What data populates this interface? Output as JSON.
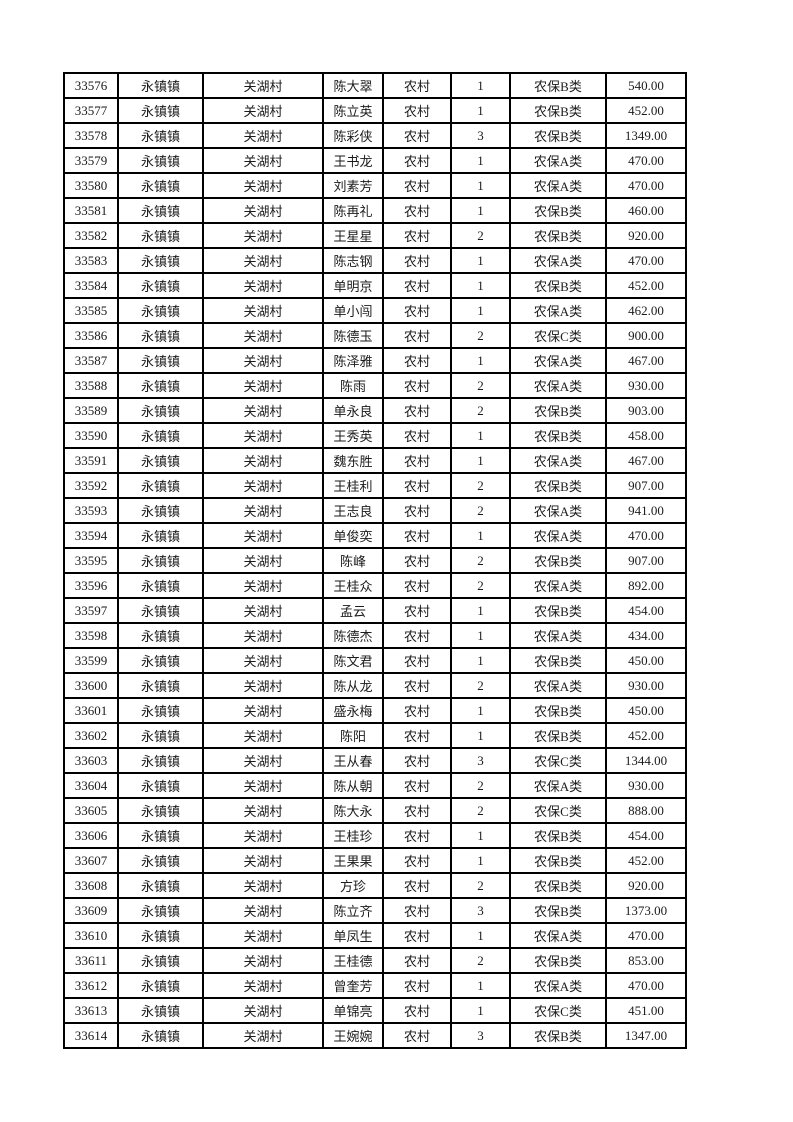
{
  "page": {
    "background_color": "#ffffff",
    "border_color": "#000000",
    "text_color": "#1b1b1b"
  },
  "table": {
    "columns": [
      "record_id",
      "town",
      "village",
      "person_name",
      "residence_type",
      "person_count",
      "insurance_class",
      "amount"
    ],
    "rows": [
      [
        "33576",
        "永镇镇",
        "关湖村",
        "陈大翠",
        "农村",
        "1",
        "农保B类",
        "540.00"
      ],
      [
        "33577",
        "永镇镇",
        "关湖村",
        "陈立英",
        "农村",
        "1",
        "农保B类",
        "452.00"
      ],
      [
        "33578",
        "永镇镇",
        "关湖村",
        "陈彩侠",
        "农村",
        "3",
        "农保B类",
        "1349.00"
      ],
      [
        "33579",
        "永镇镇",
        "关湖村",
        "王书龙",
        "农村",
        "1",
        "农保A类",
        "470.00"
      ],
      [
        "33580",
        "永镇镇",
        "关湖村",
        "刘素芳",
        "农村",
        "1",
        "农保A类",
        "470.00"
      ],
      [
        "33581",
        "永镇镇",
        "关湖村",
        "陈再礼",
        "农村",
        "1",
        "农保B类",
        "460.00"
      ],
      [
        "33582",
        "永镇镇",
        "关湖村",
        "王星星",
        "农村",
        "2",
        "农保B类",
        "920.00"
      ],
      [
        "33583",
        "永镇镇",
        "关湖村",
        "陈志钢",
        "农村",
        "1",
        "农保A类",
        "470.00"
      ],
      [
        "33584",
        "永镇镇",
        "关湖村",
        "单明京",
        "农村",
        "1",
        "农保B类",
        "452.00"
      ],
      [
        "33585",
        "永镇镇",
        "关湖村",
        "单小闯",
        "农村",
        "1",
        "农保A类",
        "462.00"
      ],
      [
        "33586",
        "永镇镇",
        "关湖村",
        "陈德玉",
        "农村",
        "2",
        "农保C类",
        "900.00"
      ],
      [
        "33587",
        "永镇镇",
        "关湖村",
        "陈泽雅",
        "农村",
        "1",
        "农保A类",
        "467.00"
      ],
      [
        "33588",
        "永镇镇",
        "关湖村",
        "陈雨",
        "农村",
        "2",
        "农保A类",
        "930.00"
      ],
      [
        "33589",
        "永镇镇",
        "关湖村",
        "单永良",
        "农村",
        "2",
        "农保B类",
        "903.00"
      ],
      [
        "33590",
        "永镇镇",
        "关湖村",
        "王秀英",
        "农村",
        "1",
        "农保B类",
        "458.00"
      ],
      [
        "33591",
        "永镇镇",
        "关湖村",
        "魏东胜",
        "农村",
        "1",
        "农保A类",
        "467.00"
      ],
      [
        "33592",
        "永镇镇",
        "关湖村",
        "王桂利",
        "农村",
        "2",
        "农保B类",
        "907.00"
      ],
      [
        "33593",
        "永镇镇",
        "关湖村",
        "王志良",
        "农村",
        "2",
        "农保A类",
        "941.00"
      ],
      [
        "33594",
        "永镇镇",
        "关湖村",
        "单俊奕",
        "农村",
        "1",
        "农保A类",
        "470.00"
      ],
      [
        "33595",
        "永镇镇",
        "关湖村",
        "陈峰",
        "农村",
        "2",
        "农保B类",
        "907.00"
      ],
      [
        "33596",
        "永镇镇",
        "关湖村",
        "王桂众",
        "农村",
        "2",
        "农保A类",
        "892.00"
      ],
      [
        "33597",
        "永镇镇",
        "关湖村",
        "孟云",
        "农村",
        "1",
        "农保B类",
        "454.00"
      ],
      [
        "33598",
        "永镇镇",
        "关湖村",
        "陈德杰",
        "农村",
        "1",
        "农保A类",
        "434.00"
      ],
      [
        "33599",
        "永镇镇",
        "关湖村",
        "陈文君",
        "农村",
        "1",
        "农保B类",
        "450.00"
      ],
      [
        "33600",
        "永镇镇",
        "关湖村",
        "陈从龙",
        "农村",
        "2",
        "农保A类",
        "930.00"
      ],
      [
        "33601",
        "永镇镇",
        "关湖村",
        "盛永梅",
        "农村",
        "1",
        "农保B类",
        "450.00"
      ],
      [
        "33602",
        "永镇镇",
        "关湖村",
        "陈阳",
        "农村",
        "1",
        "农保B类",
        "452.00"
      ],
      [
        "33603",
        "永镇镇",
        "关湖村",
        "王从春",
        "农村",
        "3",
        "农保C类",
        "1344.00"
      ],
      [
        "33604",
        "永镇镇",
        "关湖村",
        "陈从朝",
        "农村",
        "2",
        "农保A类",
        "930.00"
      ],
      [
        "33605",
        "永镇镇",
        "关湖村",
        "陈大永",
        "农村",
        "2",
        "农保C类",
        "888.00"
      ],
      [
        "33606",
        "永镇镇",
        "关湖村",
        "王桂珍",
        "农村",
        "1",
        "农保B类",
        "454.00"
      ],
      [
        "33607",
        "永镇镇",
        "关湖村",
        "王果果",
        "农村",
        "1",
        "农保B类",
        "452.00"
      ],
      [
        "33608",
        "永镇镇",
        "关湖村",
        "方珍",
        "农村",
        "2",
        "农保B类",
        "920.00"
      ],
      [
        "33609",
        "永镇镇",
        "关湖村",
        "陈立齐",
        "农村",
        "3",
        "农保B类",
        "1373.00"
      ],
      [
        "33610",
        "永镇镇",
        "关湖村",
        "单凤生",
        "农村",
        "1",
        "农保A类",
        "470.00"
      ],
      [
        "33611",
        "永镇镇",
        "关湖村",
        "王桂德",
        "农村",
        "2",
        "农保B类",
        "853.00"
      ],
      [
        "33612",
        "永镇镇",
        "关湖村",
        "曾奎芳",
        "农村",
        "1",
        "农保A类",
        "470.00"
      ],
      [
        "33613",
        "永镇镇",
        "关湖村",
        "单锦亮",
        "农村",
        "1",
        "农保C类",
        "451.00"
      ],
      [
        "33614",
        "永镇镇",
        "关湖村",
        "王婉婉",
        "农村",
        "3",
        "农保B类",
        "1347.00"
      ]
    ]
  }
}
